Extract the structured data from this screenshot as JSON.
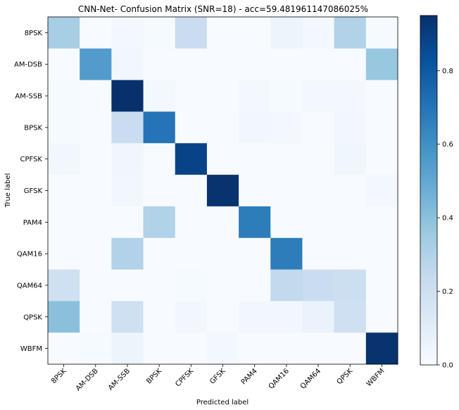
{
  "chart_data": {
    "type": "heatmap",
    "title": "CNN-Net- Confusion Matrix (SNR=18) - acc=59.481961147086025%",
    "xlabel": "Predicted label",
    "ylabel": "True label",
    "x_categories": [
      "8PSK",
      "AM-DSB",
      "AM-SSB",
      "BPSK",
      "CPFSK",
      "GFSK",
      "PAM4",
      "QAM16",
      "QAM64",
      "QPSK",
      "WBFM"
    ],
    "y_categories": [
      "8PSK",
      "AM-DSB",
      "AM-SSB",
      "BPSK",
      "CPFSK",
      "GFSK",
      "PAM4",
      "QAM16",
      "QAM64",
      "QPSK",
      "WBFM"
    ],
    "values": [
      [
        0.33,
        0.0,
        0.02,
        0.01,
        0.22,
        0.0,
        0.0,
        0.05,
        0.02,
        0.3,
        0.01
      ],
      [
        0.0,
        0.55,
        0.03,
        0.0,
        0.0,
        0.0,
        0.0,
        0.0,
        0.0,
        0.0,
        0.37
      ],
      [
        0.01,
        0.0,
        0.95,
        0.02,
        0.0,
        0.0,
        0.02,
        0.01,
        0.02,
        0.02,
        0.0
      ],
      [
        0.01,
        0.0,
        0.22,
        0.7,
        0.0,
        0.0,
        0.03,
        0.02,
        0.0,
        0.03,
        0.0
      ],
      [
        0.03,
        0.0,
        0.04,
        0.0,
        0.88,
        0.0,
        0.0,
        0.0,
        0.0,
        0.04,
        0.0
      ],
      [
        0.0,
        0.0,
        0.03,
        0.0,
        0.0,
        0.94,
        0.0,
        0.0,
        0.0,
        0.0,
        0.02
      ],
      [
        0.0,
        0.0,
        0.0,
        0.3,
        0.0,
        0.0,
        0.67,
        0.0,
        0.0,
        0.0,
        0.0
      ],
      [
        0.0,
        0.0,
        0.3,
        0.0,
        0.0,
        0.0,
        0.0,
        0.67,
        0.0,
        0.0,
        0.0
      ],
      [
        0.2,
        0.0,
        0.0,
        0.0,
        0.01,
        0.0,
        0.0,
        0.25,
        0.22,
        0.21,
        0.0
      ],
      [
        0.4,
        0.0,
        0.2,
        0.0,
        0.03,
        0.0,
        0.03,
        0.03,
        0.06,
        0.2,
        0.0
      ],
      [
        0.0,
        0.01,
        0.05,
        0.0,
        0.0,
        0.02,
        0.0,
        0.0,
        0.0,
        0.0,
        0.94
      ]
    ],
    "colorbar": {
      "min": 0.0,
      "max": 0.95,
      "ticks": [
        "0.0",
        "0.2",
        "0.4",
        "0.6",
        "0.8"
      ],
      "tick_values": [
        0.0,
        0.2,
        0.4,
        0.6,
        0.8
      ]
    },
    "colormap": "Blues",
    "grid": false
  }
}
